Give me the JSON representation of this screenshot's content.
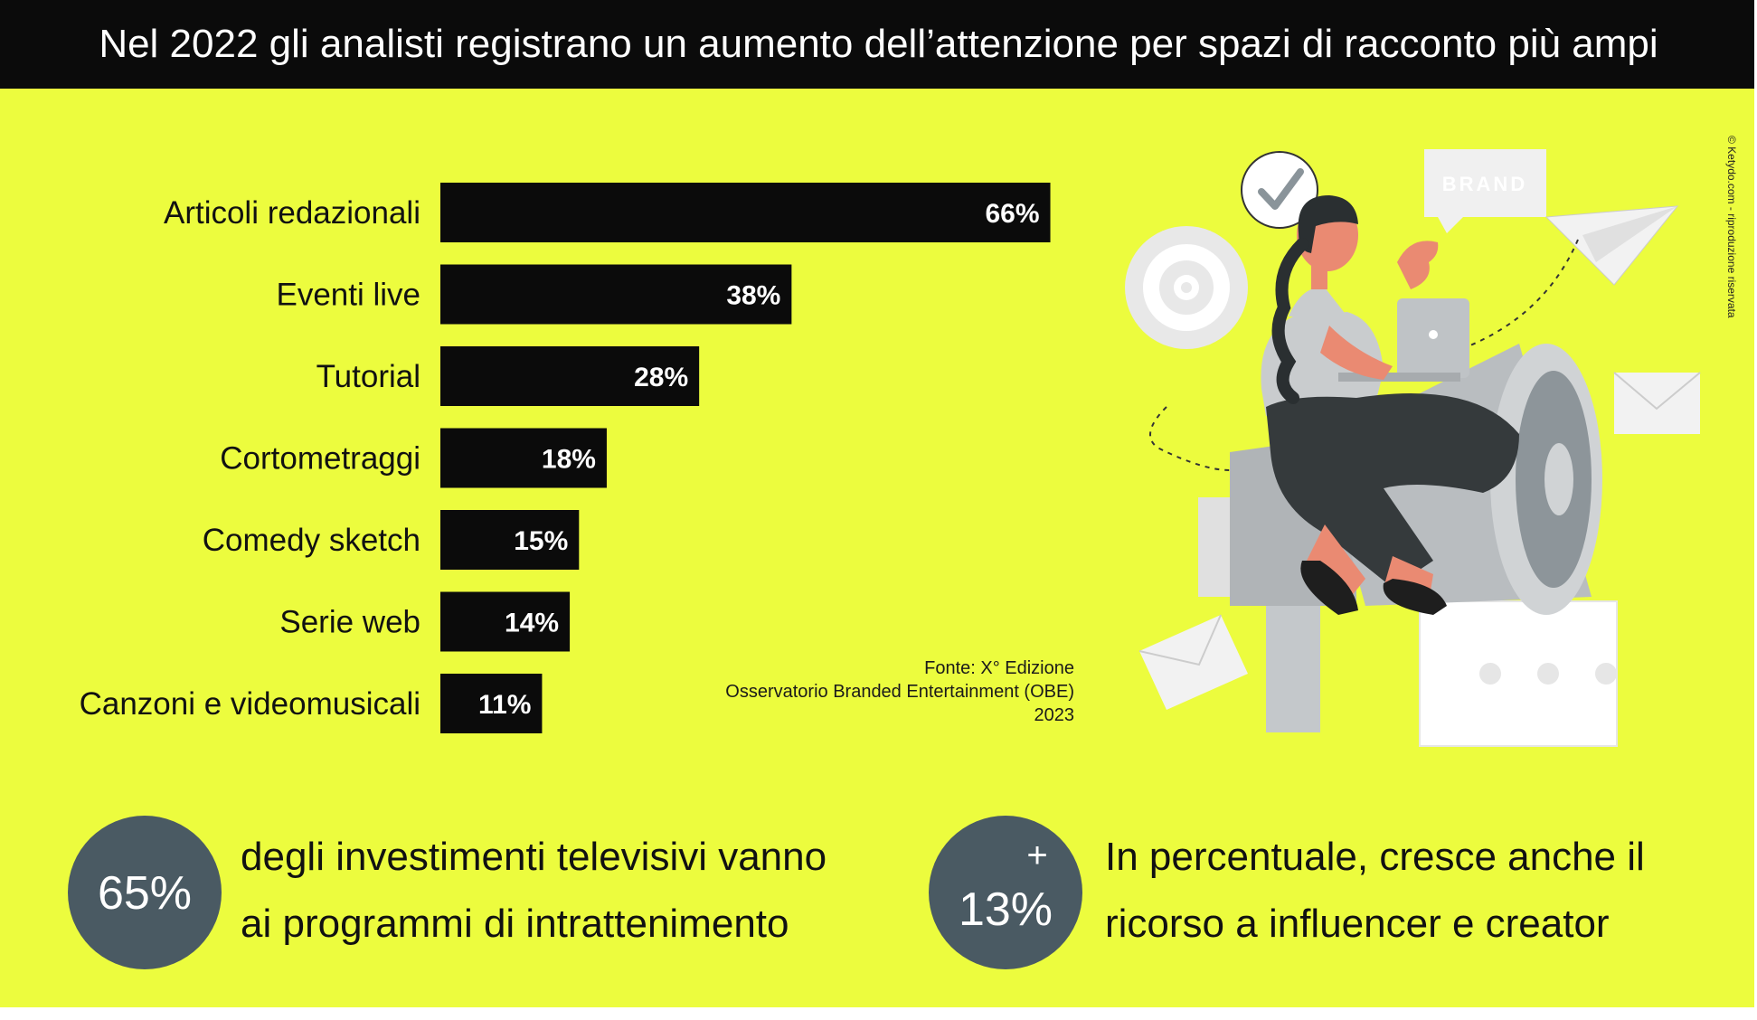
{
  "title": "Nel 2022 gli analisti registrano un aumento dell’attenzione per spazi di racconto più ampi",
  "credit": "© Ketydo.com - riproduzione riservata",
  "chart_data": {
    "type": "bar",
    "orientation": "horizontal",
    "categories": [
      "Articoli redazionali",
      "Eventi live",
      "Tutorial",
      "Cortometraggi",
      "Comedy sketch",
      "Serie web",
      "Canzoni e videomusicali"
    ],
    "values": [
      66,
      38,
      28,
      18,
      15,
      14,
      11
    ],
    "value_labels": [
      "66%",
      "38%",
      "28%",
      "18%",
      "15%",
      "14%",
      "11%"
    ],
    "xlim": [
      0,
      100
    ],
    "grid": false,
    "bar_color": "#0b0b0b"
  },
  "source": {
    "line1": "Fonte: X° Edizione",
    "line2": "Osservatorio Branded Entertainment (OBE)",
    "line3": "2023"
  },
  "stats": [
    {
      "value": "65%",
      "line1": "degli investimenti televisivi vanno",
      "line2": "ai programmi di intrattenimento"
    },
    {
      "prefix": "+",
      "value": "13%",
      "line1": "In percentuale, cresce anche il",
      "line2": "ricorso a influencer e creator"
    }
  ],
  "illustration": {
    "sign_text": "BRAND"
  },
  "colors": {
    "background": "#ecfc3e",
    "header": "#0b0b0b",
    "circle": "#4a5a63",
    "bar": "#0b0b0b",
    "bar_label": "#ffffff"
  }
}
